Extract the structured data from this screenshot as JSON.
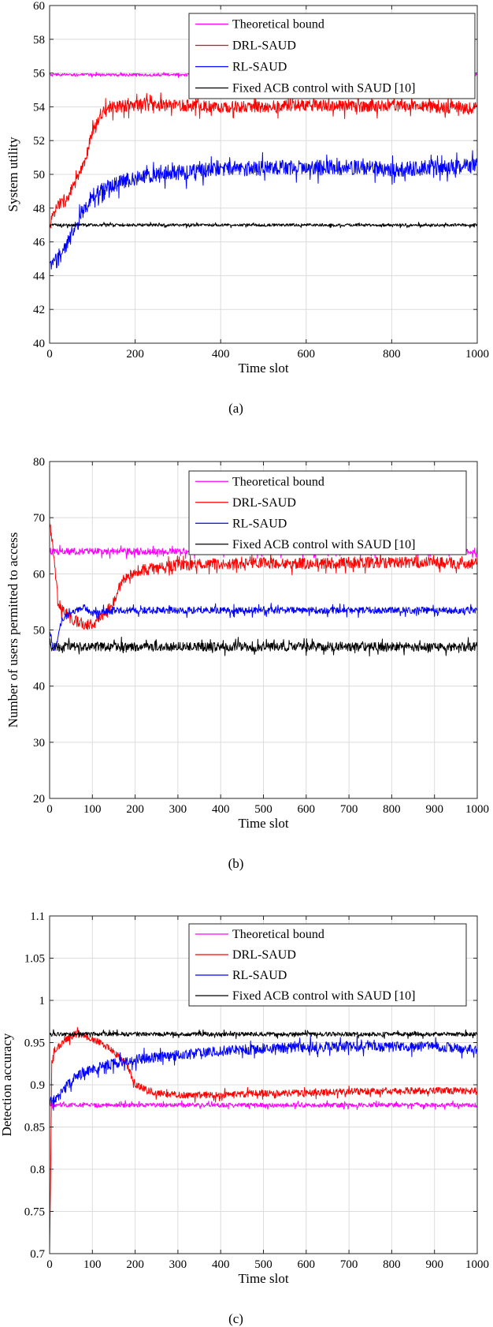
{
  "chart_data": [
    {
      "type": "line",
      "subplot_label": "(a)",
      "xlabel": "Time slot",
      "ylabel": "System utility",
      "xlim": [
        0,
        1000
      ],
      "ylim": [
        40,
        60
      ],
      "xticks": [
        0,
        200,
        400,
        600,
        800,
        1000
      ],
      "yticks": [
        40,
        42,
        44,
        46,
        48,
        50,
        52,
        54,
        56,
        58,
        60
      ],
      "grid": true,
      "legend_position": "top-right",
      "series": [
        {
          "name": "Theoretical bound",
          "color": "#ff00ff",
          "noise": 0.08,
          "x": [
            0,
            1000
          ],
          "y": [
            55.9,
            55.9
          ]
        },
        {
          "name": "DRL-SAUD",
          "color": "#ff0000",
          "noise": 0.35,
          "x": [
            0,
            20,
            40,
            60,
            80,
            100,
            120,
            150,
            200,
            300,
            400,
            500,
            600,
            700,
            800,
            900,
            1000
          ],
          "y": [
            47,
            48.2,
            48.5,
            49.5,
            50.5,
            52.5,
            53.6,
            54.0,
            54.1,
            54.1,
            54.0,
            54.0,
            54.1,
            54.0,
            54.1,
            54.0,
            53.9
          ]
        },
        {
          "name": "RL-SAUD",
          "color": "#0000ff",
          "noise": 0.45,
          "x": [
            0,
            20,
            40,
            60,
            80,
            100,
            150,
            200,
            300,
            400,
            500,
            600,
            700,
            800,
            900,
            1000
          ],
          "y": [
            44.5,
            45.0,
            45.8,
            46.8,
            47.8,
            48.8,
            49.4,
            49.8,
            50.1,
            50.3,
            50.4,
            50.4,
            50.4,
            50.3,
            50.4,
            50.5
          ]
        },
        {
          "name": "Fixed ACB control with SAUD [10]",
          "color": "#000000",
          "noise": 0.08,
          "x": [
            0,
            1000
          ],
          "y": [
            47.0,
            47.0
          ]
        }
      ]
    },
    {
      "type": "line",
      "subplot_label": "(b)",
      "xlabel": "Time slot",
      "ylabel": "Number of users permitted to access",
      "xlim": [
        0,
        1000
      ],
      "ylim": [
        20,
        80
      ],
      "xticks": [
        0,
        100,
        200,
        300,
        400,
        500,
        600,
        700,
        800,
        900,
        1000
      ],
      "yticks": [
        20,
        30,
        40,
        50,
        60,
        70,
        80
      ],
      "grid": true,
      "legend_position": "top-right",
      "series": [
        {
          "name": "Theoretical bound",
          "color": "#ff00ff",
          "noise": 0.6,
          "x": [
            0,
            1000
          ],
          "y": [
            64.0,
            64.0
          ]
        },
        {
          "name": "DRL-SAUD",
          "color": "#ff0000",
          "noise": 1.0,
          "x": [
            0,
            20,
            50,
            80,
            100,
            120,
            150,
            170,
            200,
            300,
            400,
            500,
            600,
            700,
            800,
            900,
            1000
          ],
          "y": [
            70,
            55,
            52,
            51,
            51,
            52,
            55,
            59,
            60.5,
            61.5,
            61.8,
            62.0,
            61.8,
            62.0,
            62.0,
            62.0,
            61.8
          ]
        },
        {
          "name": "RL-SAUD",
          "color": "#0000ff",
          "noise": 0.6,
          "x": [
            0,
            10,
            30,
            50,
            80,
            100,
            150,
            200,
            300,
            400,
            500,
            600,
            700,
            800,
            900,
            1000
          ],
          "y": [
            50,
            46,
            52,
            53,
            54,
            53,
            53.5,
            53.5,
            53.5,
            53.5,
            53.5,
            53.5,
            53.5,
            53.5,
            53.5,
            53.5
          ]
        },
        {
          "name": "Fixed ACB control with SAUD [10]",
          "color": "#000000",
          "noise": 0.8,
          "x": [
            0,
            1000
          ],
          "y": [
            47.0,
            47.0
          ]
        }
      ]
    },
    {
      "type": "line",
      "subplot_label": "(c)",
      "xlabel": "Time slot",
      "ylabel": "Detection accuracy",
      "xlim": [
        0,
        1000
      ],
      "ylim": [
        0.7,
        1.1
      ],
      "xticks": [
        0,
        100,
        200,
        300,
        400,
        500,
        600,
        700,
        800,
        900,
        1000
      ],
      "yticks": [
        0.7,
        0.75,
        0.8,
        0.85,
        0.9,
        0.95,
        1,
        1.05,
        1.1
      ],
      "ytick_labels": [
        "0.7",
        "0.75",
        "0.8",
        "0.85",
        "0.9",
        "0.95",
        "1",
        "1.05",
        "1.1"
      ],
      "grid": true,
      "legend_position": "top-right",
      "series": [
        {
          "name": "Theoretical bound",
          "color": "#ff00ff",
          "noise": 0.0025,
          "x": [
            0,
            1000
          ],
          "y": [
            0.876,
            0.876
          ]
        },
        {
          "name": "DRL-SAUD",
          "color": "#ff0000",
          "noise": 0.004,
          "x": [
            0,
            2,
            5,
            10,
            30,
            60,
            100,
            150,
            180,
            200,
            250,
            300,
            400,
            500,
            600,
            700,
            800,
            900,
            1000
          ],
          "y": [
            0.7,
            0.78,
            0.92,
            0.94,
            0.95,
            0.96,
            0.955,
            0.94,
            0.925,
            0.9,
            0.89,
            0.888,
            0.888,
            0.89,
            0.89,
            0.892,
            0.893,
            0.893,
            0.893
          ]
        },
        {
          "name": "RL-SAUD",
          "color": "#0000ff",
          "noise": 0.006,
          "x": [
            0,
            20,
            50,
            100,
            150,
            200,
            300,
            400,
            500,
            600,
            700,
            800,
            900,
            1000
          ],
          "y": [
            0.88,
            0.885,
            0.905,
            0.92,
            0.925,
            0.93,
            0.935,
            0.94,
            0.943,
            0.945,
            0.945,
            0.945,
            0.945,
            0.942
          ]
        },
        {
          "name": "Fixed ACB control with SAUD [10]",
          "color": "#000000",
          "noise": 0.0025,
          "x": [
            0,
            1000
          ],
          "y": [
            0.96,
            0.96
          ]
        }
      ]
    }
  ]
}
